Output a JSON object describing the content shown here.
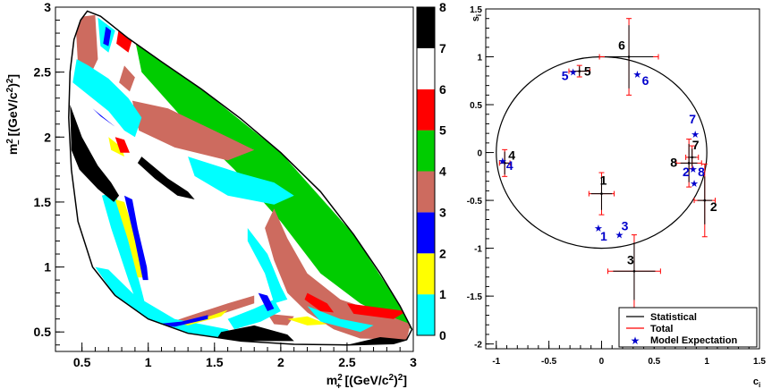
{
  "chart_data": [
    {
      "type": "heatmap",
      "xlabel_main": "m",
      "xlabel_sub": "+",
      "xlabel_rest": " [(GeV/c",
      "xlabel_end": ")",
      "ylabel_main": "m",
      "ylabel_sub": "−",
      "ylabel_rest": " [(GeV/c",
      "ylabel_end": ")",
      "sup2": "2",
      "xlim": [
        0.3,
        3.0
      ],
      "ylim": [
        0.35,
        3.0
      ],
      "x_ticks": [
        "0.5",
        "1",
        "1.5",
        "2",
        "2.5",
        "3"
      ],
      "y_ticks": [
        "0.5",
        "1",
        "1.5",
        "2",
        "2.5",
        "3"
      ],
      "colorbar_labels": [
        "0",
        "1",
        "2",
        "3",
        "4",
        "5",
        "6",
        "7",
        "8"
      ],
      "colors": [
        "#00ffff",
        "#ffff00",
        "#0000ff",
        "#cd6b5f",
        "#00cc00",
        "#ff0000",
        "#ffffff",
        "#000000"
      ]
    },
    {
      "type": "scatter",
      "xlabel": "c",
      "xlabel_sub": "i",
      "ylabel": "s",
      "ylabel_sub": "i",
      "xlim": [
        -1.1,
        1.5
      ],
      "ylim": [
        -2.05,
        1.5
      ],
      "x_ticks": [
        "-1",
        "-0.5",
        "0",
        "0.5",
        "1",
        "1.5"
      ],
      "y_ticks": [
        "-2",
        "-1.5",
        "-1",
        "-0.5",
        "0",
        "0.5",
        "1",
        "1.5"
      ],
      "circle_radius": 1,
      "measurements": [
        {
          "label": "1",
          "c": 0.0,
          "s": -0.43,
          "stat_x": 0.1,
          "stat_y": 0.17,
          "tot_x": 0.12,
          "tot_y": 0.22
        },
        {
          "label": "2",
          "c": 0.98,
          "s": -0.5,
          "stat_x": 0.07,
          "stat_y": 0.25,
          "tot_x": 0.1,
          "tot_y": 0.38
        },
        {
          "label": "3",
          "c": 0.31,
          "s": -1.24,
          "stat_x": 0.2,
          "stat_y": 0.3,
          "tot_x": 0.25,
          "tot_y": 0.38
        },
        {
          "label": "4",
          "c": -0.92,
          "s": -0.11,
          "stat_x": 0.04,
          "stat_y": 0.12,
          "tot_x": 0.05,
          "tot_y": 0.14
        },
        {
          "label": "5",
          "c": -0.21,
          "s": 0.85,
          "stat_x": 0.07,
          "stat_y": 0.05,
          "tot_x": 0.1,
          "tot_y": 0.06
        },
        {
          "label": "6",
          "c": 0.26,
          "s": 1.0,
          "stat_x": 0.23,
          "stat_y": 0.33,
          "tot_x": 0.28,
          "tot_y": 0.4
        },
        {
          "label": "7",
          "c": 0.86,
          "s": -0.05,
          "stat_x": 0.04,
          "stat_y": 0.09,
          "tot_x": 0.06,
          "tot_y": 0.12
        },
        {
          "label": "8",
          "c": 0.83,
          "s": -0.11,
          "stat_x": 0.08,
          "stat_y": 0.2,
          "tot_x": 0.12,
          "tot_y": 0.25
        }
      ],
      "model": [
        {
          "label": "1",
          "c": -0.03,
          "s": -0.79
        },
        {
          "label": "2",
          "c": 0.87,
          "s": -0.17
        },
        {
          "label": "3",
          "c": 0.17,
          "s": -0.86
        },
        {
          "label": "4",
          "c": -0.94,
          "s": -0.09
        },
        {
          "label": "5",
          "c": -0.27,
          "s": 0.84
        },
        {
          "label": "6",
          "c": 0.34,
          "s": 0.82
        },
        {
          "label": "7",
          "c": 0.89,
          "s": 0.19
        },
        {
          "label": "8",
          "c": 0.88,
          "s": -0.32
        }
      ],
      "legend": {
        "position": "bottom-right",
        "entries": [
          "Statistical",
          "Total",
          "Model Expectation"
        ]
      },
      "stat_color": "#000000",
      "total_color": "#ff0000",
      "model_color": "#0000cc"
    }
  ]
}
